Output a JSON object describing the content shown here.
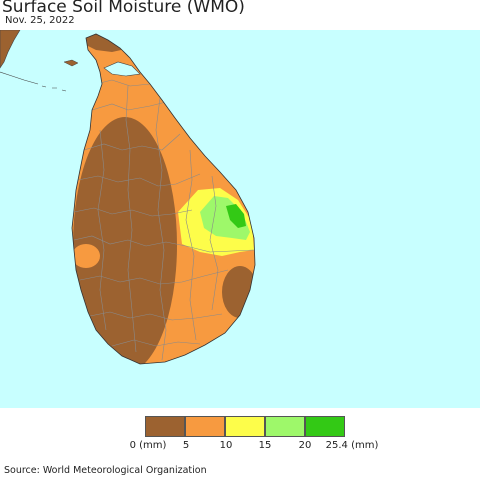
{
  "header": {
    "title": "Surface Soil Moisture (WMO)",
    "date": "Nov. 25, 2022"
  },
  "legend": {
    "ticks": [
      "0 (mm)",
      "5",
      "10",
      "15",
      "20",
      "25.4 (mm)"
    ],
    "bins": [
      {
        "range": "0-5",
        "color": "#9c6230"
      },
      {
        "range": "5-10",
        "color": "#f79a40"
      },
      {
        "range": "10-15",
        "color": "#fdfd4a"
      },
      {
        "range": "15-20",
        "color": "#9ef86a"
      },
      {
        "range": "20-25.4",
        "color": "#33c915"
      }
    ]
  },
  "colors": {
    "sea": "#c8ffff",
    "border": "#888888"
  },
  "footer": {
    "source": "Source: World Meteorological Organization"
  }
}
